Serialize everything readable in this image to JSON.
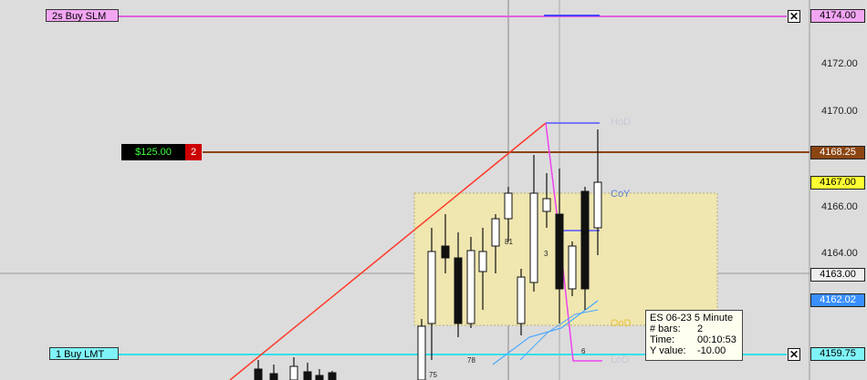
{
  "orders": {
    "top_tag": "2s  Buy SLM",
    "bottom_tag": "1  Buy LMT",
    "close_symbol": "✕"
  },
  "pnl": {
    "amount": "$125.00",
    "qty": "2"
  },
  "price_axis": {
    "labels": [
      "4174.00",
      "4172.00",
      "4170.00",
      "4168.25",
      "4166.00",
      "4164.00",
      "4163.00",
      "4162.02",
      "4159.75"
    ],
    "top_box": "4174.00",
    "position_box": "4168.25",
    "hod_box": "4167.00",
    "last_box": "4163.00",
    "blue_box": "4162.02",
    "bottom_box": "4159.75",
    "tick_4170": "4170.00",
    "tick_4172": "4172.00",
    "tick_4166": "4166.00",
    "tick_4164": "4164.00"
  },
  "levels": {
    "hod": "HoD",
    "coy": "CoY",
    "ood": "OoD",
    "lod": "LoD"
  },
  "bar_numbers": {
    "n81": "81",
    "n3": "3",
    "n78": "78",
    "n75": "75",
    "n6": "6"
  },
  "tooltip": {
    "title": "ES 06-23 5 Minute",
    "bars_key": "# bars:",
    "bars_val": "2",
    "time_key": "Time:",
    "time_val": "00:10:53",
    "y_key": "Y value:",
    "y_val": "-10.00"
  },
  "colors": {
    "order_top": "#e060e0",
    "order_bottom": "#33e0e8",
    "position_line": "#8b4513",
    "zone_fill": "#efe6b0",
    "trend_line": "#ff3a2a",
    "magenta_line": "#ee44ee"
  }
}
